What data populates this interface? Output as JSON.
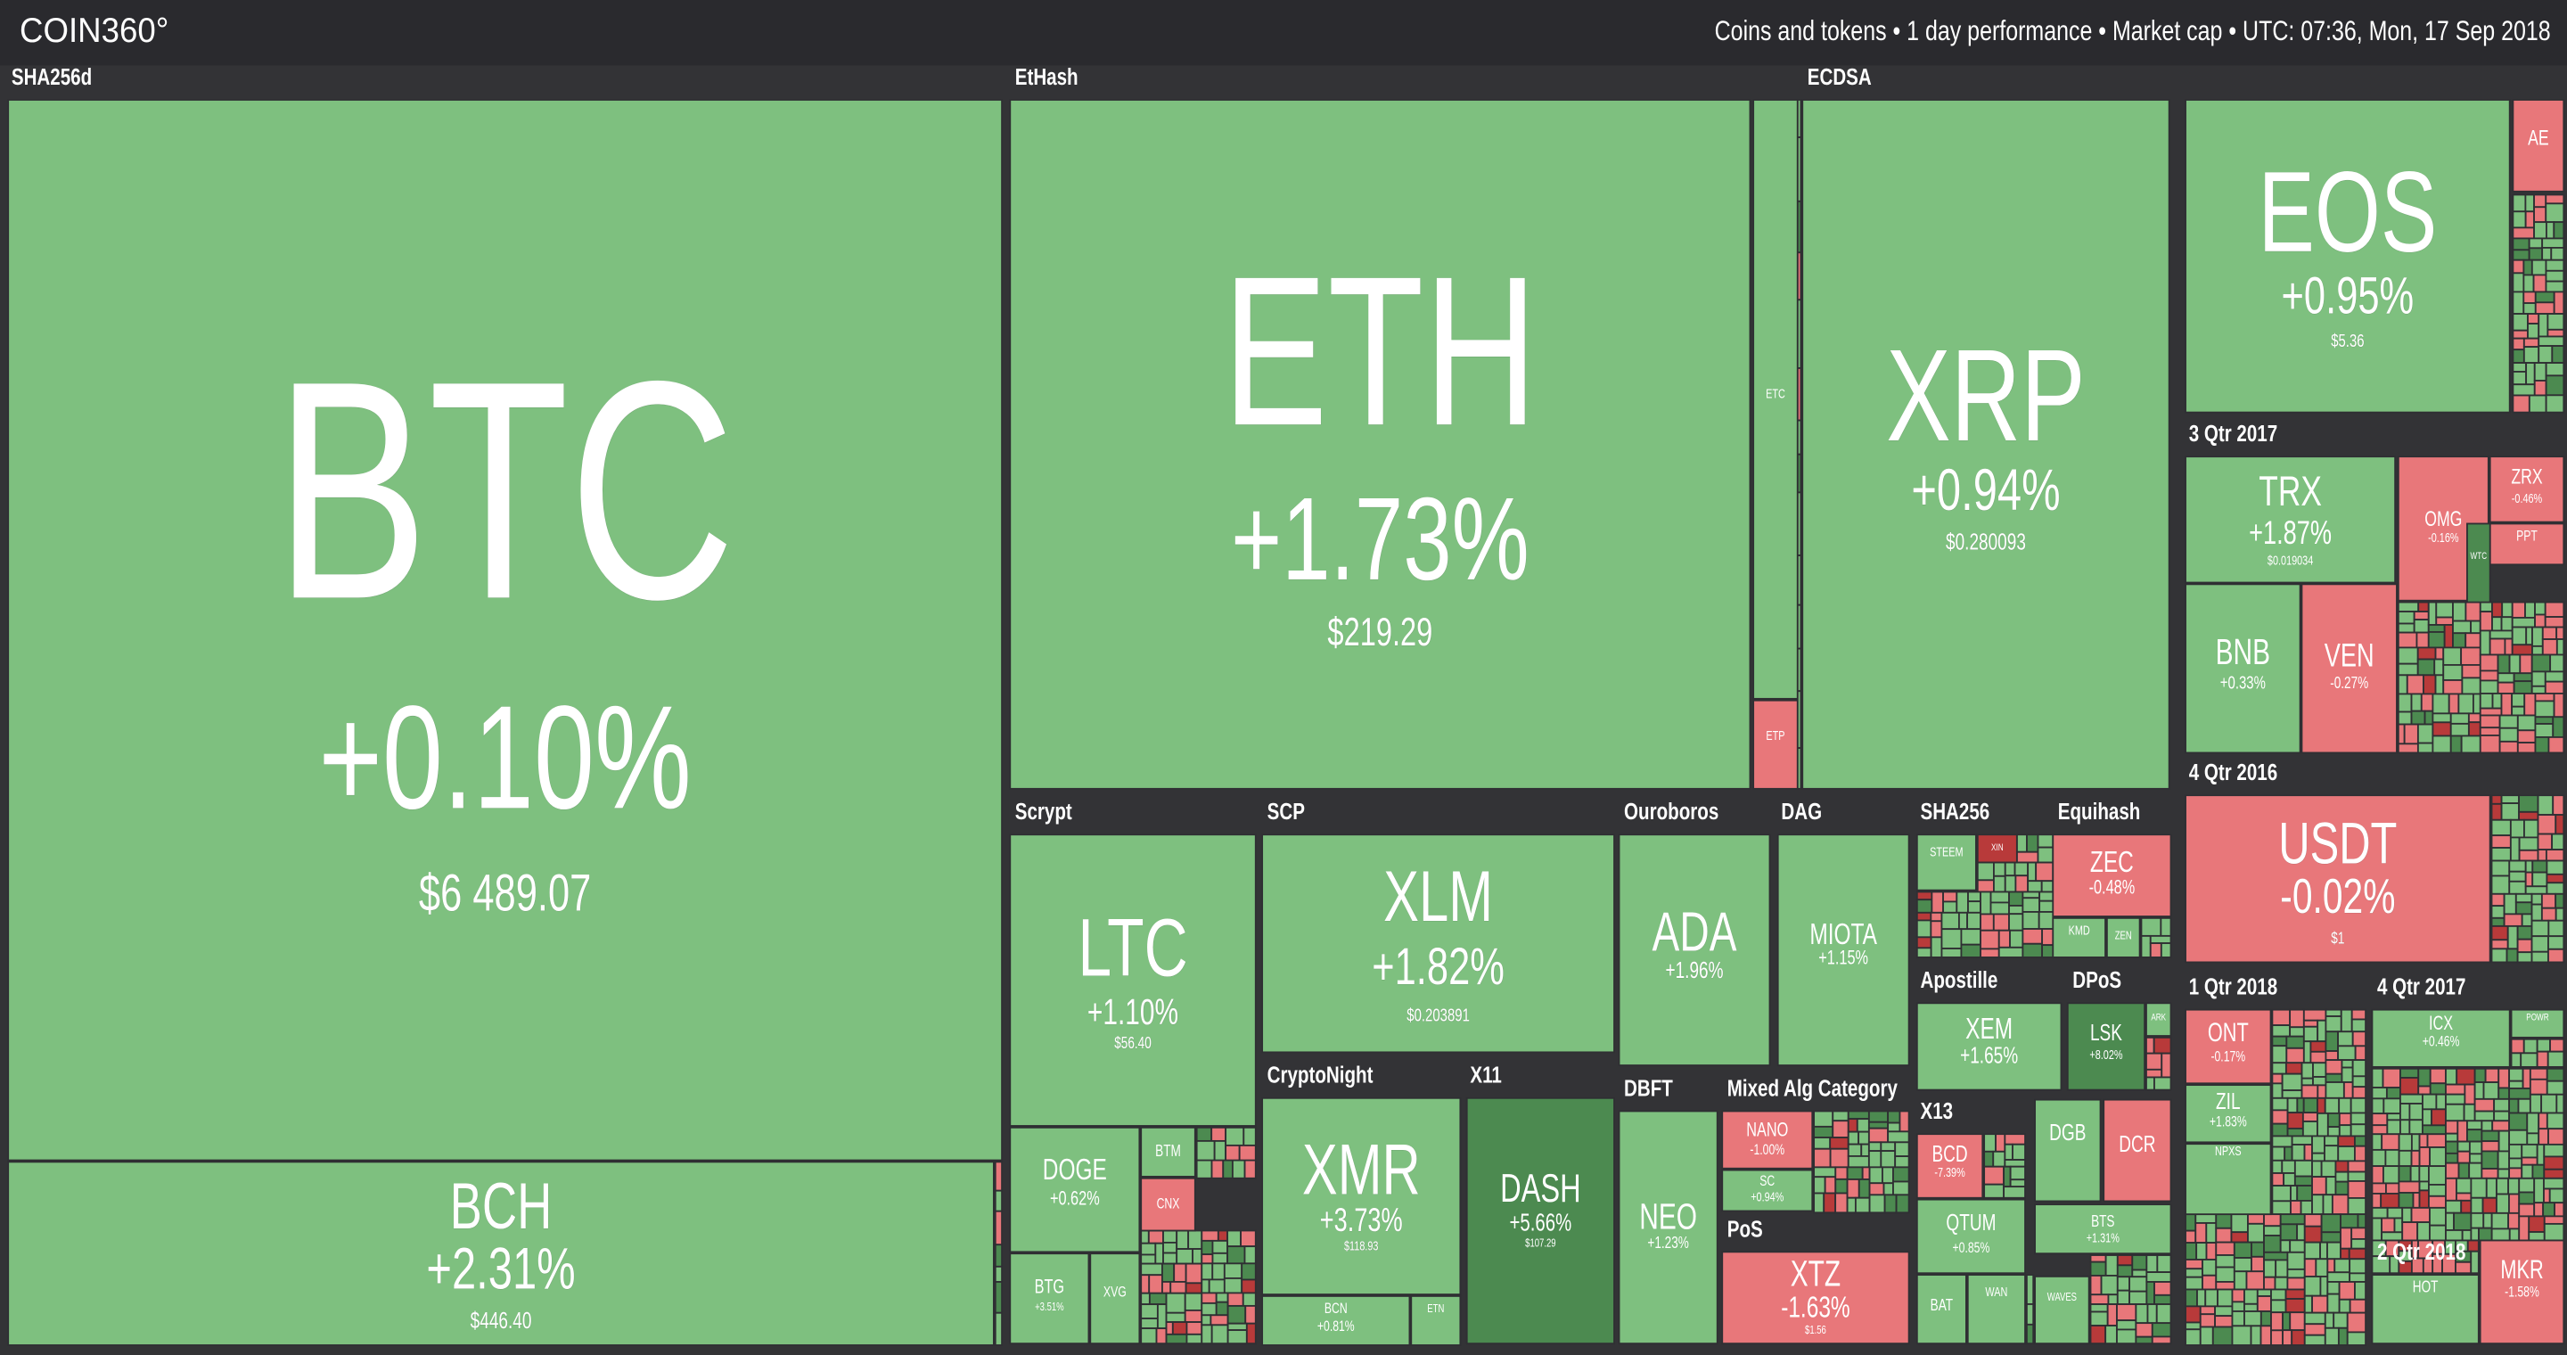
{
  "header": {
    "logo": "COIN360°",
    "info": "Coins and tokens • 1 day performance • Market cap • UTC: 07:36, Mon, 17 Sep 2018"
  },
  "groups": [
    {
      "label": "SHA256d",
      "tiles": [
        {
          "symbol": "BTC",
          "change": "+0.10%",
          "price": "$6 489.07",
          "color": "#7ec07f"
        },
        {
          "symbol": "BCH",
          "change": "+2.31%",
          "price": "$446.40",
          "color": "#7ec07f"
        }
      ]
    },
    {
      "label": "EtHash",
      "tiles": [
        {
          "symbol": "ETH",
          "change": "+1.73%",
          "price": "$219.29",
          "color": "#7ec07f"
        },
        {
          "symbol": "ETC",
          "color": "#7ec07f"
        },
        {
          "symbol": "ETP",
          "color": "#e8777a"
        }
      ]
    },
    {
      "label": "ECDSA",
      "tiles": [
        {
          "symbol": "XRP",
          "change": "+0.94%",
          "price": "$0.280093",
          "color": "#7ec07f"
        }
      ]
    },
    {
      "tiles": [
        {
          "symbol": "EOS",
          "change": "+0.95%",
          "price": "$5.36",
          "color": "#7ec07f"
        },
        {
          "symbol": "AE",
          "color": "#e8777a"
        }
      ]
    },
    {
      "label": "3 Qtr 2017",
      "tiles": [
        {
          "symbol": "TRX",
          "change": "+1.87%",
          "price": "$0.019034",
          "color": "#7ec07f"
        },
        {
          "symbol": "OMG",
          "change": "-0.16%",
          "color": "#e8777a"
        },
        {
          "symbol": "ZRX",
          "change": "-0.46%",
          "color": "#e8777a"
        },
        {
          "symbol": "PPT",
          "color": "#e8777a"
        },
        {
          "symbol": "WTC",
          "color": "#4c8a50"
        },
        {
          "symbol": "BNB",
          "change": "+0.33%",
          "color": "#7ec07f"
        },
        {
          "symbol": "VEN",
          "change": "-0.27%",
          "color": "#e8777a"
        }
      ]
    },
    {
      "label": "4 Qtr 2016",
      "tiles": [
        {
          "symbol": "USDT",
          "change": "-0.02%",
          "price": "$1",
          "color": "#e8777a"
        }
      ]
    },
    {
      "label": "Scrypt",
      "tiles": [
        {
          "symbol": "LTC",
          "change": "+1.10%",
          "price": "$56.40",
          "color": "#7ec07f"
        },
        {
          "symbol": "DOGE",
          "change": "+0.62%",
          "color": "#7ec07f"
        },
        {
          "symbol": "BTM",
          "color": "#7ec07f"
        },
        {
          "symbol": "CNX",
          "color": "#e8777a"
        },
        {
          "symbol": "BTG",
          "change": "+3.51%",
          "color": "#7ec07f"
        },
        {
          "symbol": "XVG",
          "color": "#7ec07f"
        }
      ]
    },
    {
      "label": "SCP",
      "tiles": [
        {
          "symbol": "XLM",
          "change": "+1.82%",
          "price": "$0.203891",
          "color": "#7ec07f"
        }
      ]
    },
    {
      "label": "CryptoNight",
      "tiles": [
        {
          "symbol": "XMR",
          "change": "+3.73%",
          "price": "$118.93",
          "color": "#7ec07f"
        },
        {
          "symbol": "BCN",
          "change": "+0.81%",
          "color": "#7ec07f"
        },
        {
          "symbol": "ETN",
          "color": "#7ec07f"
        }
      ]
    },
    {
      "label": "X11",
      "tiles": [
        {
          "symbol": "DASH",
          "change": "+5.66%",
          "price": "$107.29",
          "color": "#4c8a50"
        }
      ]
    },
    {
      "label": "Ouroboros",
      "tiles": [
        {
          "symbol": "ADA",
          "change": "+1.96%",
          "color": "#7ec07f"
        }
      ]
    },
    {
      "label": "DAG",
      "tiles": [
        {
          "symbol": "MIOTA",
          "change": "+1.15%",
          "color": "#7ec07f"
        }
      ]
    },
    {
      "label": "DBFT",
      "tiles": [
        {
          "symbol": "NEO",
          "change": "+1.23%",
          "color": "#7ec07f"
        }
      ]
    },
    {
      "label": "Mixed Alg Category",
      "tiles": [
        {
          "symbol": "NANO",
          "change": "-1.00%",
          "color": "#e8777a"
        },
        {
          "symbol": "SC",
          "change": "+0.94%",
          "color": "#7ec07f"
        }
      ]
    },
    {
      "label": "PoS",
      "tiles": [
        {
          "symbol": "XTZ",
          "change": "-1.63%",
          "price": "$1.56",
          "color": "#e8777a"
        }
      ]
    },
    {
      "label": "SHA256",
      "tiles": [
        {
          "symbol": "STEEM",
          "color": "#7ec07f"
        },
        {
          "symbol": "XIN",
          "color": "#b83a3a"
        }
      ]
    },
    {
      "label": "Equihash",
      "tiles": [
        {
          "symbol": "ZEC",
          "change": "-0.48%",
          "color": "#e8777a"
        },
        {
          "symbol": "KMD",
          "color": "#7ec07f"
        },
        {
          "symbol": "ZEN",
          "color": "#7ec07f"
        }
      ]
    },
    {
      "label": "Apostille",
      "tiles": [
        {
          "symbol": "XEM",
          "change": "+1.65%",
          "color": "#7ec07f"
        }
      ]
    },
    {
      "label": "DPoS",
      "tiles": [
        {
          "symbol": "LSK",
          "change": "+8.02%",
          "color": "#4c8a50"
        },
        {
          "symbol": "ARK",
          "color": "#7ec07f"
        }
      ]
    },
    {
      "label": "X13",
      "tiles": [
        {
          "symbol": "BCD",
          "change": "-7.39%",
          "color": "#e8777a"
        },
        {
          "symbol": "QTUM",
          "change": "+0.85%",
          "color": "#7ec07f"
        },
        {
          "symbol": "BAT",
          "color": "#7ec07f"
        },
        {
          "symbol": "WAN",
          "color": "#7ec07f"
        },
        {
          "symbol": "DGB",
          "color": "#7ec07f"
        },
        {
          "symbol": "DCR",
          "color": "#e8777a"
        },
        {
          "symbol": "BTS",
          "change": "+1.31%",
          "color": "#7ec07f"
        },
        {
          "symbol": "WAVES",
          "color": "#7ec07f"
        }
      ]
    },
    {
      "label": "1 Qtr 2018",
      "tiles": [
        {
          "symbol": "ONT",
          "change": "-0.17%",
          "color": "#e8777a"
        },
        {
          "symbol": "ZIL",
          "change": "+1.83%",
          "color": "#7ec07f"
        },
        {
          "symbol": "NPXS",
          "color": "#7ec07f"
        }
      ]
    },
    {
      "label": "4 Qtr 2017",
      "tiles": [
        {
          "symbol": "ICX",
          "change": "+0.46%",
          "color": "#7ec07f"
        },
        {
          "symbol": "POWR",
          "color": "#7ec07f"
        }
      ]
    },
    {
      "label": "2 Qtr 2018",
      "tiles": [
        {
          "symbol": "HOT",
          "color": "#7ec07f"
        },
        {
          "symbol": "MKR",
          "change": "-1.58%",
          "color": "#e8777a"
        }
      ]
    }
  ]
}
